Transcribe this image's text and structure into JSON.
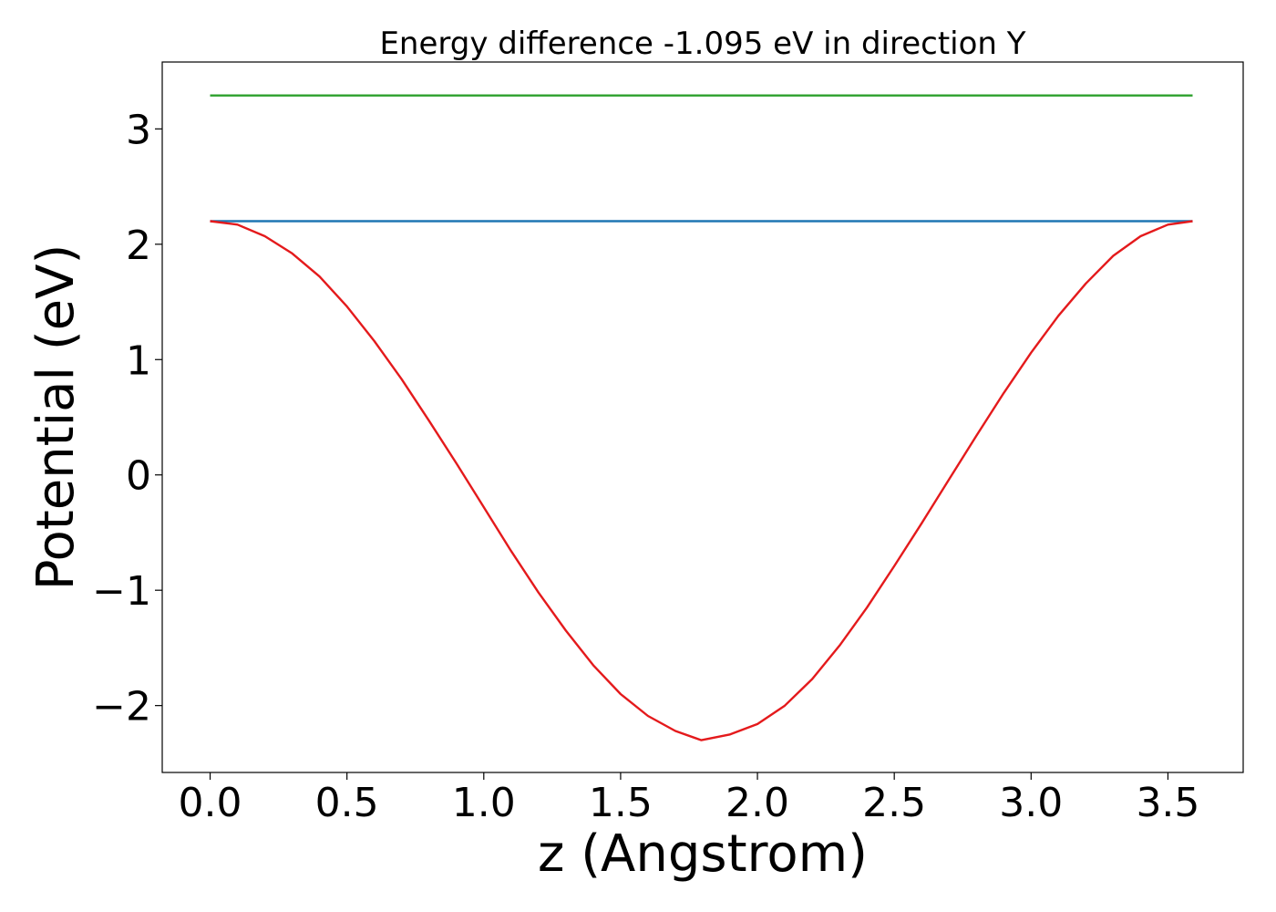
{
  "chart_data": {
    "type": "line",
    "title": "Energy difference -1.095 eV in direction Y",
    "xlabel": "z (Angstrom)",
    "ylabel": "Potential (eV)",
    "xlim": [
      -0.175,
      3.775
    ],
    "ylim": [
      -2.58,
      3.58
    ],
    "xticks": [
      0.0,
      0.5,
      1.0,
      1.5,
      2.0,
      2.5,
      3.0,
      3.5
    ],
    "xtick_labels": [
      "0.0",
      "0.5",
      "1.0",
      "1.5",
      "2.0",
      "2.5",
      "3.0",
      "3.5"
    ],
    "yticks": [
      -2,
      -1,
      0,
      1,
      2,
      3
    ],
    "ytick_labels": [
      "−2",
      "−1",
      "0",
      "1",
      "2",
      "3"
    ],
    "grid": false,
    "legend": "none",
    "series": [
      {
        "color": "#2ca02c",
        "x": [
          0.0,
          3.59
        ],
        "y": [
          3.29,
          3.29
        ]
      },
      {
        "color": "#1f77b4",
        "x": [
          0.0,
          3.59
        ],
        "y": [
          2.2,
          2.2
        ]
      },
      {
        "color": "#e41a1c",
        "x": [
          0.0,
          0.1,
          0.2,
          0.3,
          0.4,
          0.5,
          0.6,
          0.7,
          0.8,
          0.9,
          1.0,
          1.1,
          1.2,
          1.3,
          1.4,
          1.5,
          1.6,
          1.7,
          1.795,
          1.9,
          2.0,
          2.1,
          2.2,
          2.3,
          2.4,
          2.5,
          2.6,
          2.7,
          2.8,
          2.9,
          3.0,
          3.1,
          3.2,
          3.3,
          3.4,
          3.5,
          3.59
        ],
        "y": [
          2.2,
          2.17,
          2.07,
          1.92,
          1.72,
          1.46,
          1.16,
          0.83,
          0.47,
          0.1,
          -0.28,
          -0.66,
          -1.02,
          -1.35,
          -1.65,
          -1.9,
          -2.09,
          -2.22,
          -2.3,
          -2.25,
          -2.16,
          -2.0,
          -1.77,
          -1.48,
          -1.15,
          -0.79,
          -0.42,
          -0.04,
          0.34,
          0.71,
          1.06,
          1.38,
          1.66,
          1.9,
          2.07,
          2.17,
          2.2
        ]
      }
    ]
  }
}
